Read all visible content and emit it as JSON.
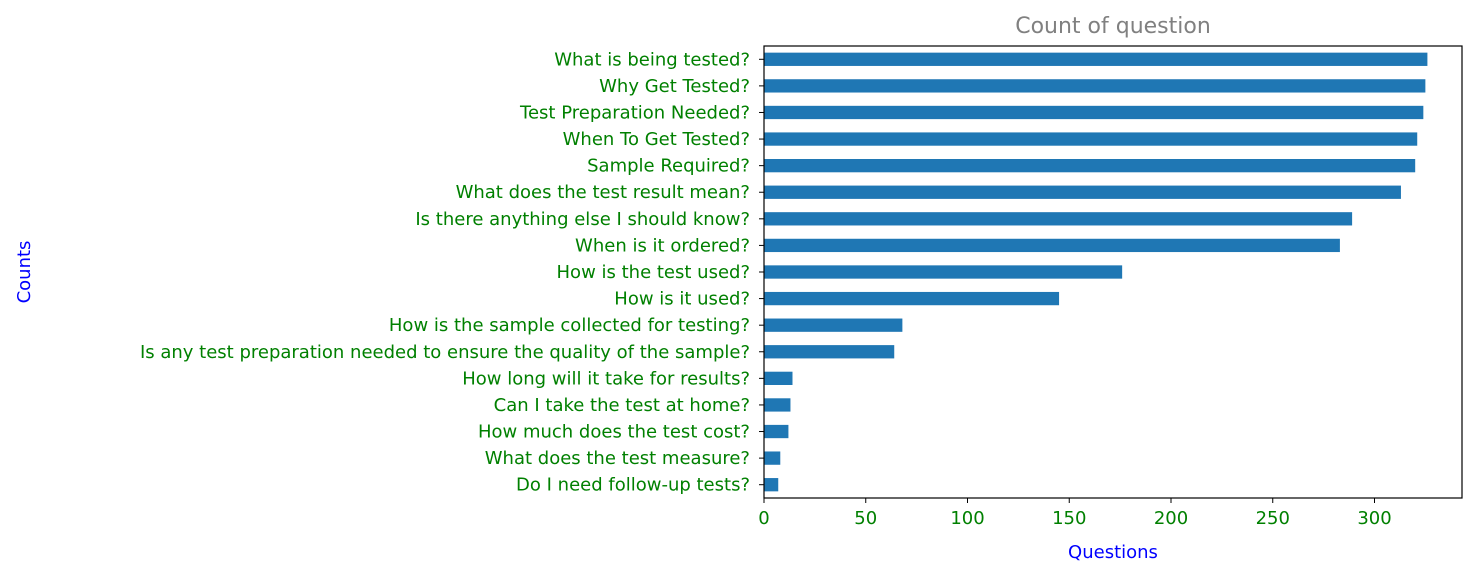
{
  "chart_data": {
    "type": "bar",
    "orientation": "horizontal",
    "title": "Count of question",
    "xlabel": "Questions",
    "ylabel": "Counts",
    "xlim": [
      0,
      343
    ],
    "xticks": [
      0,
      50,
      100,
      150,
      200,
      250,
      300
    ],
    "grid": false,
    "categories": [
      "What is being tested?",
      "Why Get Tested?",
      "Test Preparation Needed?",
      "When To Get Tested?",
      "Sample Required?",
      "What does the test result mean?",
      "Is there anything else I should know?",
      "When is it ordered?",
      "How is the test used?",
      "How is it used?",
      "How is the sample collected for testing?",
      "Is any test preparation needed to ensure the quality of the sample?",
      "How long will it take for results?",
      "Can I take the test at home?",
      "How much does the test cost?",
      "What does the test measure?",
      "Do I need follow-up tests?"
    ],
    "values": [
      326,
      325,
      324,
      321,
      320,
      313,
      289,
      283,
      176,
      145,
      68,
      64,
      14,
      13,
      12,
      8,
      7
    ],
    "colors": {
      "bar": "#1f77b4",
      "tick_labels": "#008000",
      "axis_labels": "#0000ff",
      "title": "#808080",
      "axes": "#000000"
    }
  }
}
